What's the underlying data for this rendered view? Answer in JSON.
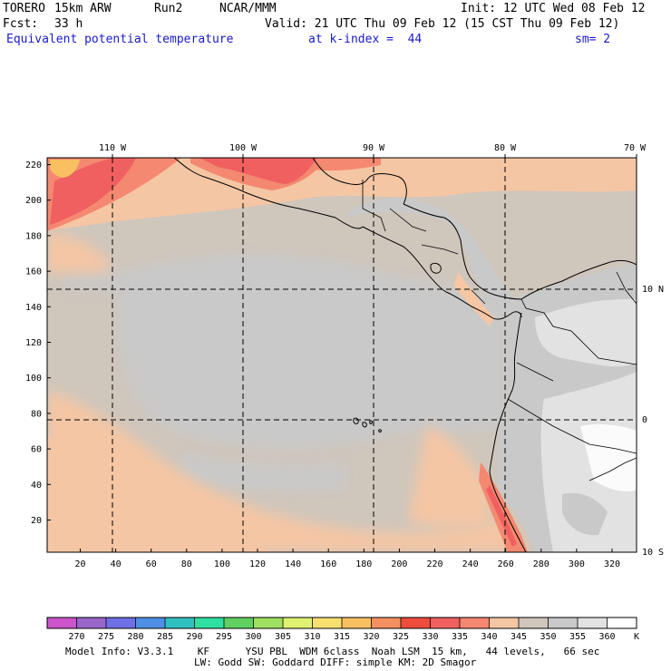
{
  "header": {
    "model": "TORERO",
    "resolution": "15km ARW",
    "run": "Run2",
    "org": "NCAR/MMM",
    "init": "Init: 12 UTC Wed 08 Feb 12",
    "fcst_label": "Fcst:",
    "fcst_value": "33 h",
    "valid": "Valid: 21 UTC Thu 09 Feb 12 (15 CST Thu 09 Feb 12)",
    "field": "Equivalent potential temperature",
    "level": "at k-index =  44",
    "smooth": "sm= 2"
  },
  "top_axis": [
    "110 W",
    "100 W",
    "90 W",
    "80 W",
    "70 W"
  ],
  "right_axis": [
    "10 N",
    "0",
    "10 S"
  ],
  "left_axis": [
    "220",
    "200",
    "180",
    "160",
    "140",
    "120",
    "100",
    "80",
    "60",
    "40",
    "20"
  ],
  "bottom_axis": [
    "20",
    "40",
    "60",
    "80",
    "100",
    "120",
    "140",
    "160",
    "180",
    "200",
    "220",
    "240",
    "260",
    "280",
    "300",
    "320"
  ],
  "colorbar": {
    "colors": [
      "#cc55cc",
      "#9966cc",
      "#6f6fe6",
      "#4f8fe6",
      "#30c0c0",
      "#30e0a0",
      "#60d060",
      "#a0e060",
      "#e0f070",
      "#f8e070",
      "#f8c060",
      "#f49060",
      "#ee4c3c",
      "#f06060",
      "#f48870",
      "#f4c6a4",
      "#cfc6bc",
      "#c9c9c9",
      "#e2e2e2",
      "#ffffff"
    ],
    "labels": [
      "270",
      "275",
      "280",
      "285",
      "290",
      "295",
      "300",
      "305",
      "310",
      "315",
      "320",
      "325",
      "330",
      "335",
      "340",
      "345",
      "350",
      "355",
      "360"
    ],
    "unit": "K"
  },
  "footer": {
    "line1": "Model Info: V3.3.1    KF      YSU PBL  WDM 6class  Noah LSM  15 km,   44 levels,   66 sec",
    "line2": "LW: Godd SW: Goddard DIFF: simple KM: 2D Smagor"
  }
}
